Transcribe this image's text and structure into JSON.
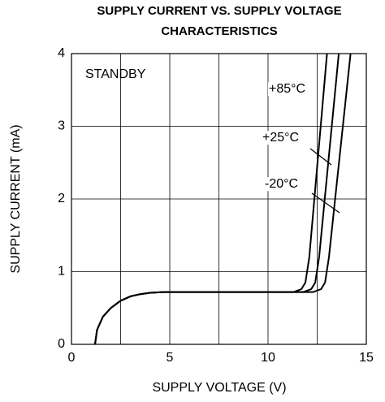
{
  "chart_data": {
    "type": "line",
    "title": [
      "SUPPLY CURRENT VS. SUPPLY VOLTAGE",
      "CHARACTERISTICS"
    ],
    "xlabel": "SUPPLY VOLTAGE (V)",
    "ylabel": "SUPPLY CURRENT (mA)",
    "xlim": [
      0,
      15
    ],
    "ylim": [
      0,
      4
    ],
    "xticks": [
      0,
      5,
      10,
      15
    ],
    "yticks": [
      0,
      1,
      2,
      3,
      4
    ],
    "xgrid_minor": [
      2.5,
      7.5,
      12.5
    ],
    "grid": true,
    "annotations": [
      "STANDBY",
      "+85°C",
      "+25°C",
      "-20°C"
    ],
    "series": [
      {
        "name": "+85°C",
        "color": "#000000",
        "x": [
          1.2,
          1.3,
          1.6,
          2,
          2.5,
          3,
          3.5,
          4,
          4.7,
          11.3,
          11.7,
          11.9,
          12.1,
          13.0
        ],
        "values": [
          0,
          0.2,
          0.38,
          0.5,
          0.6,
          0.66,
          0.69,
          0.71,
          0.72,
          0.72,
          0.76,
          0.85,
          1.2,
          4
        ]
      },
      {
        "name": "+25°C",
        "color": "#000000",
        "x": [
          1.2,
          1.3,
          1.6,
          2,
          2.5,
          3,
          3.5,
          4,
          4.7,
          11.8,
          12.2,
          12.4,
          12.6,
          13.6
        ],
        "values": [
          0,
          0.2,
          0.38,
          0.5,
          0.6,
          0.66,
          0.69,
          0.71,
          0.72,
          0.72,
          0.76,
          0.85,
          1.2,
          4
        ]
      },
      {
        "name": "-20°C",
        "color": "#000000",
        "x": [
          1.2,
          1.3,
          1.6,
          2,
          2.5,
          3,
          3.5,
          4,
          4.7,
          12.3,
          12.7,
          12.9,
          13.1,
          14.2
        ],
        "values": [
          0,
          0.2,
          0.38,
          0.5,
          0.6,
          0.66,
          0.69,
          0.71,
          0.72,
          0.72,
          0.76,
          0.85,
          1.2,
          4
        ]
      }
    ]
  }
}
